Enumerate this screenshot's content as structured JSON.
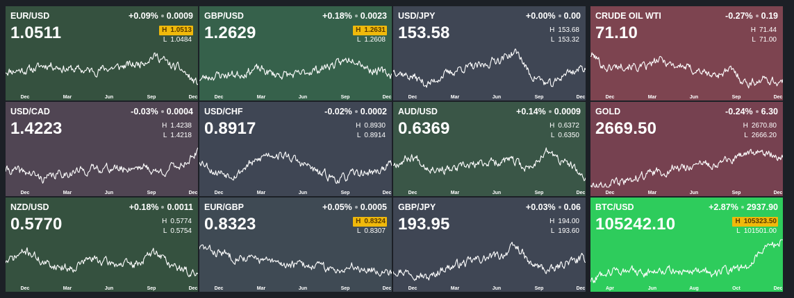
{
  "tiles": [
    {
      "symbol": "EUR/USD",
      "change_pct": "+0.09%",
      "change_abs": "0.0009",
      "price": "1.0511",
      "high_prefix": "H",
      "high": "1.0513",
      "low_prefix": "L",
      "low": "1.0484",
      "high_highlighted": true,
      "bg": "#35513f",
      "seed": 11,
      "trend": [
        0.48,
        0.5,
        0.62,
        0.52,
        0.48,
        0.55,
        0.62,
        0.82,
        0.55,
        0.2
      ],
      "x_ticks": [
        "Dec",
        "Mar",
        "Jun",
        "Sep",
        "Dec"
      ]
    },
    {
      "symbol": "GBP/USD",
      "change_pct": "+0.18%",
      "change_abs": "0.0023",
      "price": "1.2629",
      "high_prefix": "H",
      "high": "1.2631",
      "low_prefix": "L",
      "low": "1.2608",
      "high_highlighted": true,
      "bg": "#36614b",
      "seed": 23,
      "trend": [
        0.3,
        0.38,
        0.4,
        0.52,
        0.4,
        0.38,
        0.5,
        0.62,
        0.78,
        0.5,
        0.4
      ],
      "x_ticks": [
        "Dec",
        "Mar",
        "Jun",
        "Sep",
        "Dec"
      ]
    },
    {
      "symbol": "USD/JPY",
      "change_pct": "+0.00%",
      "change_abs": "0.00",
      "price": "153.58",
      "high_prefix": "H",
      "high": "153.68",
      "low_prefix": "L",
      "low": "153.32",
      "high_highlighted": false,
      "bg": "#3f4654",
      "seed": 37,
      "trend": [
        0.5,
        0.35,
        0.18,
        0.4,
        0.55,
        0.58,
        0.75,
        0.9,
        0.35,
        0.15,
        0.45,
        0.55
      ],
      "x_ticks": [
        "Dec",
        "Mar",
        "Jun",
        "Sep",
        "Dec"
      ]
    },
    {
      "symbol": "USD/CAD",
      "change_pct": "-0.03%",
      "change_abs": "0.0004",
      "price": "1.4223",
      "high_prefix": "H",
      "high": "1.4238",
      "low_prefix": "L",
      "low": "1.4218",
      "high_highlighted": false,
      "bg": "#504553",
      "seed": 41,
      "trend": [
        0.4,
        0.35,
        0.2,
        0.32,
        0.38,
        0.45,
        0.42,
        0.48,
        0.35,
        0.5,
        0.78
      ],
      "x_ticks": [
        "Dec",
        "Mar",
        "Jun",
        "Sep",
        "Dec"
      ]
    },
    {
      "symbol": "USD/CHF",
      "change_pct": "-0.02%",
      "change_abs": "0.0002",
      "price": "0.8917",
      "high_prefix": "H",
      "high": "0.8930",
      "low_prefix": "L",
      "low": "0.8914",
      "high_highlighted": false,
      "bg": "#3f4654",
      "seed": 53,
      "trend": [
        0.62,
        0.35,
        0.3,
        0.55,
        0.78,
        0.72,
        0.52,
        0.3,
        0.18,
        0.32,
        0.35,
        0.52
      ],
      "x_ticks": [
        "Dec",
        "Mar",
        "Jun",
        "Sep",
        "Dec"
      ]
    },
    {
      "symbol": "AUD/USD",
      "change_pct": "+0.14%",
      "change_abs": "0.0009",
      "price": "0.6369",
      "high_prefix": "H",
      "high": "0.6372",
      "low_prefix": "L",
      "low": "0.6350",
      "high_highlighted": false,
      "bg": "#3a5647",
      "seed": 67,
      "trend": [
        0.55,
        0.7,
        0.45,
        0.4,
        0.5,
        0.58,
        0.62,
        0.45,
        0.82,
        0.55,
        0.2
      ],
      "x_ticks": [
        "Dec",
        "Mar",
        "Jun",
        "Sep",
        "Dec"
      ]
    },
    {
      "symbol": "NZD/USD",
      "change_pct": "+0.18%",
      "change_abs": "0.0011",
      "price": "0.5770",
      "high_prefix": "H",
      "high": "0.5774",
      "low_prefix": "L",
      "low": "0.5754",
      "high_highlighted": false,
      "bg": "#35513f",
      "seed": 71,
      "trend": [
        0.5,
        0.72,
        0.42,
        0.35,
        0.55,
        0.45,
        0.42,
        0.7,
        0.35,
        0.18
      ],
      "x_ticks": [
        "Dec",
        "Mar",
        "Jun",
        "Sep",
        "Dec"
      ]
    },
    {
      "symbol": "EUR/GBP",
      "change_pct": "+0.05%",
      "change_abs": "0.0005",
      "price": "0.8323",
      "high_prefix": "H",
      "high": "0.8324",
      "low_prefix": "L",
      "low": "0.8307",
      "high_highlighted": true,
      "bg": "#3f4a54",
      "seed": 83,
      "trend": [
        0.82,
        0.7,
        0.6,
        0.55,
        0.45,
        0.42,
        0.4,
        0.3,
        0.38,
        0.3,
        0.25
      ],
      "x_ticks": [
        "Dec",
        "Mar",
        "Jun",
        "Sep",
        "Dec"
      ]
    },
    {
      "symbol": "GBP/JPY",
      "change_pct": "+0.03%",
      "change_abs": "0.06",
      "price": "193.95",
      "high_prefix": "H",
      "high": "194.00",
      "low_prefix": "L",
      "low": "193.60",
      "high_highlighted": false,
      "bg": "#3f4654",
      "seed": 97,
      "trend": [
        0.3,
        0.25,
        0.12,
        0.35,
        0.45,
        0.55,
        0.62,
        0.82,
        0.4,
        0.28,
        0.48,
        0.55
      ],
      "x_ticks": [
        "Dec",
        "Mar",
        "Jun",
        "Sep",
        "Dec"
      ]
    },
    {
      "symbol": "CRUDE OIL WTI",
      "change_pct": "-0.27%",
      "change_abs": "0.19",
      "price": "71.10",
      "high_prefix": "H",
      "high": "71.44",
      "low_prefix": "L",
      "low": "71.00",
      "high_highlighted": false,
      "bg": "#7d4450",
      "seed": 101,
      "trend": [
        0.85,
        0.55,
        0.62,
        0.55,
        0.72,
        0.6,
        0.5,
        0.38,
        0.48,
        0.2,
        0.28,
        0.2
      ],
      "x_ticks": [
        "Dec",
        "Mar",
        "Jun",
        "Sep",
        "Dec"
      ]
    },
    {
      "symbol": "GOLD",
      "change_pct": "-0.24%",
      "change_abs": "6.30",
      "price": "2669.50",
      "high_prefix": "H",
      "high": "2670.80",
      "low_prefix": "L",
      "low": "2666.20",
      "high_highlighted": false,
      "bg": "#764150",
      "seed": 113,
      "trend": [
        0.05,
        0.08,
        0.12,
        0.28,
        0.35,
        0.45,
        0.5,
        0.55,
        0.62,
        0.78,
        0.8,
        0.72
      ],
      "x_ticks": [
        "Dec",
        "Mar",
        "Jun",
        "Sep",
        "Dec"
      ]
    },
    {
      "symbol": "BTC/USD",
      "change_pct": "+2.87%",
      "change_abs": "2937.90",
      "price": "105242.10",
      "high_prefix": "H",
      "high": "105323.50",
      "low_prefix": "L",
      "low": "101501.00",
      "high_highlighted": true,
      "bg": "#2ecc5c",
      "seed": 127,
      "trend": [
        0.05,
        0.28,
        0.3,
        0.22,
        0.32,
        0.25,
        0.3,
        0.2,
        0.3,
        0.38,
        0.85,
        0.95
      ],
      "x_ticks": [
        "Apr",
        "Jun",
        "Aug",
        "Oct",
        "Dec"
      ]
    }
  ]
}
